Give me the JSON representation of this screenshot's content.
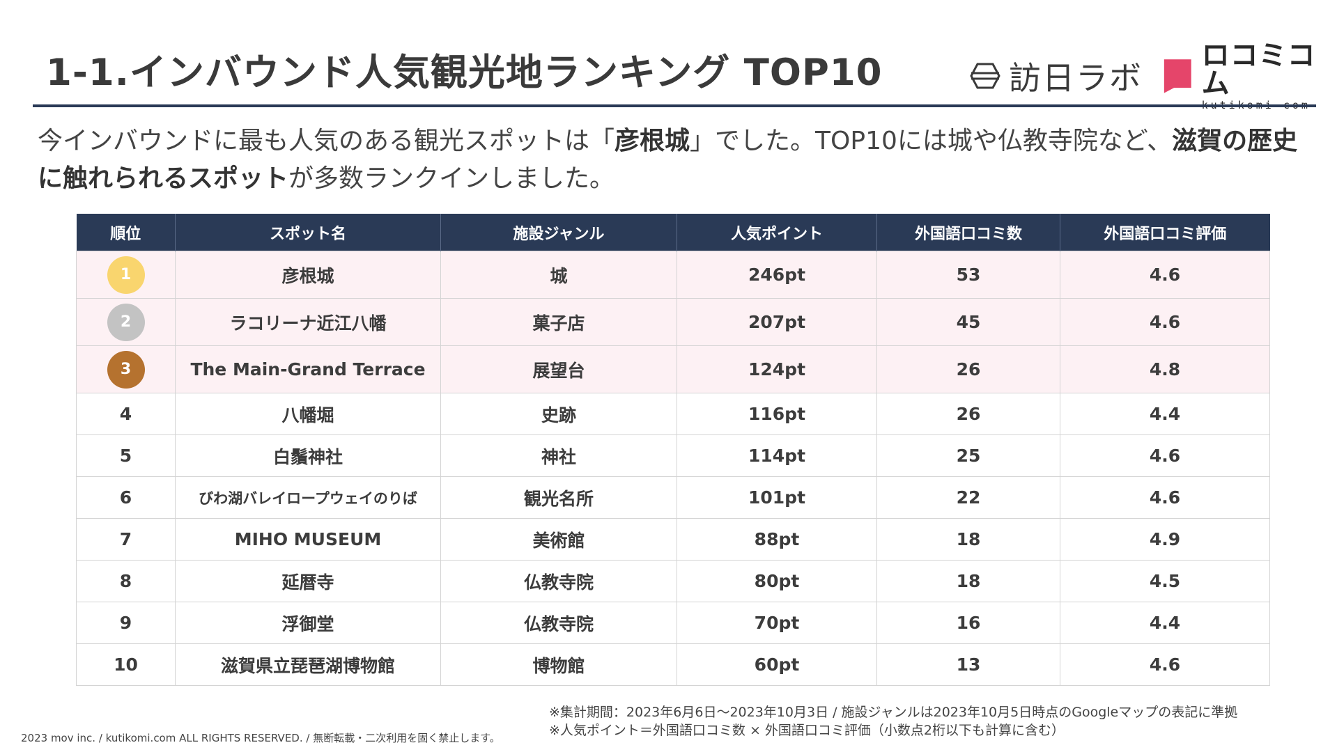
{
  "header": {
    "title": "1-1.インバウンド人気観光地ランキング TOP10",
    "logo_houjitsu": "訪日ラボ",
    "logo_kutikomi_jp": "ロコミコム",
    "logo_kutikomi_en": "kutikomi com",
    "rule_color": "#2a3a56"
  },
  "lead": {
    "p1": "今インバウンドに最も人気のある観光スポットは「",
    "b1": "彦根城",
    "p2": "」でした。TOP10には城や仏教寺院など、",
    "b2": "滋賀の歴史に触れられるスポット",
    "p3": "が多数ランクインしました。"
  },
  "table": {
    "headers": [
      "順位",
      "スポット名",
      "施設ジャンル",
      "人気ポイント",
      "外国語口コミ数",
      "外国語口コミ評価"
    ],
    "rows": [
      {
        "rank": "1",
        "name": "彦根城",
        "genre": "城",
        "points": "246pt",
        "reviews": "53",
        "rating": "4.6",
        "medal_color": "#f9d56e"
      },
      {
        "rank": "2",
        "name": "ラコリーナ近江八幡",
        "genre": "菓子店",
        "points": "207pt",
        "reviews": "45",
        "rating": "4.6",
        "medal_color": "#c3c3c3"
      },
      {
        "rank": "3",
        "name": "The Main-Grand Terrace",
        "genre": "展望台",
        "points": "124pt",
        "reviews": "26",
        "rating": "4.8",
        "medal_color": "#b5722f"
      },
      {
        "rank": "4",
        "name": "八幡堀",
        "genre": "史跡",
        "points": "116pt",
        "reviews": "26",
        "rating": "4.4"
      },
      {
        "rank": "5",
        "name": "白鬚神社",
        "genre": "神社",
        "points": "114pt",
        "reviews": "25",
        "rating": "4.6"
      },
      {
        "rank": "6",
        "name": "びわ湖バレイロープウェイのりば",
        "genre": "観光名所",
        "points": "101pt",
        "reviews": "22",
        "rating": "4.6"
      },
      {
        "rank": "7",
        "name": "MIHO MUSEUM",
        "genre": "美術館",
        "points": "88pt",
        "reviews": "18",
        "rating": "4.9"
      },
      {
        "rank": "8",
        "name": "延暦寺",
        "genre": "仏教寺院",
        "points": "80pt",
        "reviews": "18",
        "rating": "4.5"
      },
      {
        "rank": "9",
        "name": "浮御堂",
        "genre": "仏教寺院",
        "points": "70pt",
        "reviews": "16",
        "rating": "4.4"
      },
      {
        "rank": "10",
        "name": "滋賀県立琵琶湖博物館",
        "genre": "博物館",
        "points": "60pt",
        "reviews": "13",
        "rating": "4.6"
      }
    ]
  },
  "notes": {
    "line1": "※集計期間：2023年6月6日〜2023年10月3日 / 施設ジャンルは2023年10月5日時点のGoogleマップの表記に準拠",
    "line2": "※人気ポイント＝外国語口コミ数 × 外国語口コミ評価（小数点2桁以下も計算に含む）"
  },
  "footer": {
    "copyright": "2023 mov inc. / kutikomi.com ALL RIGHTS RESERVED. / 無断転載・二次利用を固く禁止します。"
  },
  "colors": {
    "header_bg": "#2a3a56",
    "top3_row_bg": "#fdf1f4",
    "kutikomi_pink": "#e5456a"
  }
}
